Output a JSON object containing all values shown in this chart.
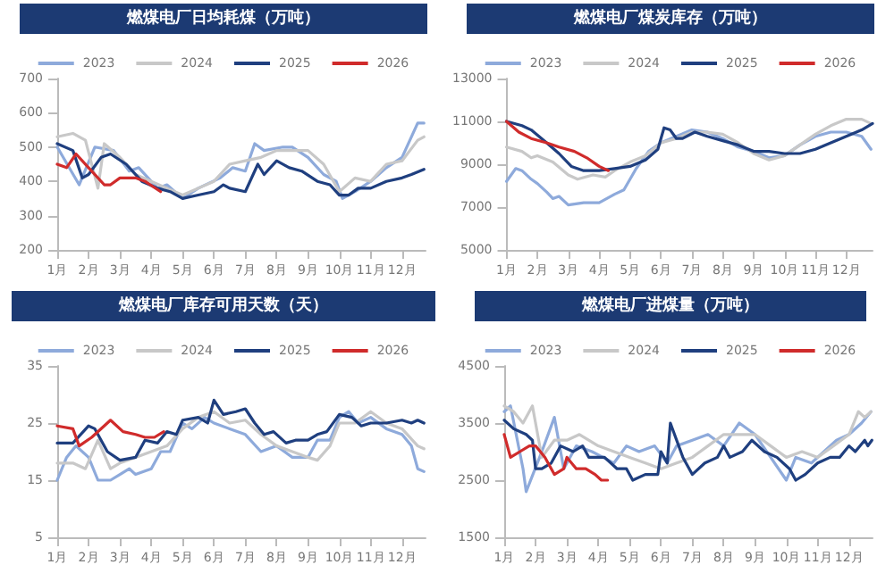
{
  "chart_data": [
    {
      "type": "line",
      "title": "燃煤电厂日均耗煤（万吨）",
      "legend": "top",
      "grid": false,
      "marker": "none",
      "line_style": "solid",
      "xlim": [
        1,
        12.75
      ],
      "xticks": [
        {
          "value": 1,
          "label": "1月"
        },
        {
          "value": 2,
          "label": "2月"
        },
        {
          "value": 3,
          "label": "3月"
        },
        {
          "value": 4,
          "label": "4月"
        },
        {
          "value": 5,
          "label": "5月"
        },
        {
          "value": 6,
          "label": "6月"
        },
        {
          "value": 7,
          "label": "7月"
        },
        {
          "value": 8,
          "label": "8月"
        },
        {
          "value": 9,
          "label": "9月"
        },
        {
          "value": 10,
          "label": "10月"
        },
        {
          "value": 11,
          "label": "11月"
        },
        {
          "value": 12,
          "label": "12月"
        }
      ],
      "ylim": [
        200,
        700
      ],
      "yticks": [
        200,
        300,
        400,
        500,
        600,
        700
      ],
      "series": [
        {
          "name": "2023",
          "color": "#8eaadb",
          "x": [
            1,
            1.7,
            2.2,
            2.8,
            3.3,
            3.6,
            4.2,
            4.5,
            5,
            5.5,
            6.2,
            6.6,
            7,
            7.3,
            7.6,
            8.2,
            8.5,
            9,
            9.5,
            9.9,
            10.1,
            10.5,
            11,
            11.5,
            12,
            12.5,
            12.7
          ],
          "values": [
            500,
            390,
            500,
            490,
            430,
            440,
            380,
            390,
            350,
            380,
            410,
            440,
            430,
            510,
            490,
            500,
            500,
            470,
            420,
            400,
            350,
            370,
            400,
            440,
            470,
            570,
            570
          ]
        },
        {
          "name": "2024",
          "color": "#c8c8c8",
          "x": [
            1,
            1.5,
            1.9,
            2.3,
            2.5,
            3,
            3.5,
            4,
            4.5,
            5,
            5.5,
            6,
            6.5,
            7,
            7.5,
            8,
            8.5,
            9,
            9.5,
            10,
            10.5,
            11,
            11.5,
            12,
            12.5,
            12.7
          ],
          "values": [
            530,
            540,
            520,
            380,
            510,
            470,
            420,
            400,
            380,
            360,
            380,
            400,
            450,
            460,
            470,
            490,
            490,
            490,
            450,
            370,
            410,
            400,
            450,
            460,
            520,
            530
          ]
        },
        {
          "name": "2025",
          "color": "#1f3f7f",
          "x": [
            1,
            1.5,
            1.8,
            2,
            2.4,
            2.7,
            3.2,
            3.7,
            4.2,
            4.6,
            5,
            5.5,
            6,
            6.3,
            6.5,
            7,
            7.4,
            7.6,
            8,
            8.4,
            8.8,
            9.3,
            9.7,
            10,
            10.3,
            10.6,
            11,
            11.5,
            12,
            12.3,
            12.7
          ],
          "values": [
            510,
            490,
            410,
            420,
            470,
            480,
            450,
            400,
            380,
            370,
            350,
            360,
            370,
            390,
            380,
            370,
            450,
            420,
            460,
            440,
            430,
            400,
            390,
            360,
            360,
            380,
            380,
            400,
            410,
            420,
            435
          ]
        },
        {
          "name": "2026",
          "color": "#d02b2b",
          "x": [
            1,
            1.3,
            1.6,
            2,
            2.5,
            2.7,
            3,
            3.5,
            3.8,
            4.3
          ],
          "values": [
            450,
            440,
            480,
            440,
            390,
            390,
            410,
            410,
            400,
            370
          ]
        }
      ]
    },
    {
      "type": "line",
      "title": "燃煤电厂煤炭库存（万吨）",
      "legend": "top",
      "grid": false,
      "marker": "none",
      "line_style": "solid",
      "xlim": [
        1,
        12.85
      ],
      "xticks": [
        {
          "value": 1,
          "label": "1月"
        },
        {
          "value": 2,
          "label": "2月"
        },
        {
          "value": 3,
          "label": "3月"
        },
        {
          "value": 4,
          "label": "4月"
        },
        {
          "value": 5,
          "label": "5月"
        },
        {
          "value": 6,
          "label": "6月"
        },
        {
          "value": 7,
          "label": "7月"
        },
        {
          "value": 8,
          "label": "8月"
        },
        {
          "value": 9,
          "label": "9月"
        },
        {
          "value": 10,
          "label": "10月"
        },
        {
          "value": 11,
          "label": "11月"
        },
        {
          "value": 12,
          "label": "12月"
        }
      ],
      "ylim": [
        5000,
        13000
      ],
      "yticks": [
        5000,
        7000,
        9000,
        11000,
        13000
      ],
      "series": [
        {
          "name": "2023",
          "color": "#8eaadb",
          "x": [
            1,
            1.3,
            1.5,
            1.8,
            2,
            2.3,
            2.5,
            2.7,
            3,
            3.5,
            4,
            4.5,
            4.8,
            5.2,
            5.6,
            6,
            6.5,
            7,
            7.5,
            8,
            8.5,
            9,
            9.5,
            10,
            10.5,
            11,
            11.5,
            12,
            12.5,
            12.8
          ],
          "values": [
            8200,
            8800,
            8700,
            8300,
            8100,
            7700,
            7400,
            7500,
            7100,
            7200,
            7200,
            7600,
            7800,
            8800,
            9600,
            10000,
            10300,
            10600,
            10500,
            10200,
            9800,
            9600,
            9300,
            9400,
            9900,
            10300,
            10500,
            10500,
            10300,
            9700
          ]
        },
        {
          "name": "2024",
          "color": "#c8c8c8",
          "x": [
            1,
            1.5,
            1.8,
            2,
            2.5,
            3,
            3.3,
            3.8,
            4.2,
            4.5,
            5,
            5.5,
            6,
            6.5,
            7,
            7.5,
            8,
            8.5,
            9,
            9.5,
            10,
            10.5,
            11,
            11.5,
            12,
            12.5,
            12.8
          ],
          "values": [
            9800,
            9600,
            9300,
            9400,
            9100,
            8500,
            8300,
            8500,
            8400,
            8700,
            9100,
            9400,
            10000,
            10200,
            10500,
            10500,
            10400,
            10000,
            9500,
            9200,
            9400,
            9900,
            10400,
            10800,
            11100,
            11100,
            10900
          ]
        },
        {
          "name": "2025",
          "color": "#1f3f7f",
          "x": [
            1,
            1.5,
            1.8,
            2.3,
            2.7,
            3.1,
            3.5,
            4,
            4.5,
            5,
            5.5,
            5.9,
            6.1,
            6.3,
            6.5,
            6.7,
            7.1,
            7.5,
            8,
            8.5,
            9,
            9.5,
            10,
            10.5,
            11,
            11.5,
            12,
            12.5,
            12.85
          ],
          "values": [
            11000,
            10800,
            10600,
            10000,
            9500,
            8900,
            8700,
            8700,
            8800,
            8900,
            9200,
            9700,
            10700,
            10600,
            10200,
            10200,
            10500,
            10300,
            10100,
            9900,
            9600,
            9600,
            9500,
            9500,
            9700,
            10000,
            10300,
            10600,
            10900
          ]
        },
        {
          "name": "2026",
          "color": "#d02b2b",
          "x": [
            1,
            1.4,
            1.8,
            2.3,
            2.7,
            3.2,
            3.6,
            4,
            4.3
          ],
          "values": [
            11000,
            10500,
            10200,
            10000,
            9800,
            9600,
            9300,
            8900,
            8700
          ]
        }
      ]
    },
    {
      "type": "line",
      "title": "燃煤电厂库存可用天数（天）",
      "legend": "top",
      "grid": false,
      "marker": "none",
      "line_style": "solid",
      "xlim": [
        1,
        12.75
      ],
      "xticks": [
        {
          "value": 1,
          "label": "1月"
        },
        {
          "value": 2,
          "label": "2月"
        },
        {
          "value": 3,
          "label": "3月"
        },
        {
          "value": 4,
          "label": "4月"
        },
        {
          "value": 5,
          "label": "5月"
        },
        {
          "value": 6,
          "label": "6月"
        },
        {
          "value": 7,
          "label": "7月"
        },
        {
          "value": 8,
          "label": "8月"
        },
        {
          "value": 9,
          "label": "9月"
        },
        {
          "value": 10,
          "label": "10月"
        },
        {
          "value": 11,
          "label": "11月"
        },
        {
          "value": 12,
          "label": "12月"
        }
      ],
      "ylim": [
        5,
        35
      ],
      "yticks": [
        5,
        15,
        25,
        35
      ],
      "series": [
        {
          "name": "2023",
          "color": "#8eaadb",
          "x": [
            1,
            1.3,
            1.6,
            2,
            2.3,
            2.7,
            3,
            3.3,
            3.5,
            4,
            4.3,
            4.6,
            5,
            5.3,
            5.7,
            6,
            6.5,
            7,
            7.5,
            8,
            8.5,
            9,
            9.3,
            9.7,
            10,
            10.3,
            10.6,
            11,
            11.5,
            12,
            12.3,
            12.5,
            12.7
          ],
          "values": [
            15,
            19,
            21,
            19,
            15,
            15,
            16,
            17,
            16,
            17,
            20,
            20,
            25,
            24,
            26,
            25,
            24,
            23,
            20,
            21,
            19,
            19,
            22,
            22,
            26,
            27,
            25,
            26,
            24,
            23,
            21,
            17,
            16.5
          ]
        },
        {
          "name": "2024",
          "color": "#c8c8c8",
          "x": [
            1,
            1.5,
            1.9,
            2.3,
            2.7,
            3,
            3.5,
            4,
            4.5,
            5,
            5.5,
            6,
            6.5,
            7,
            7.5,
            8,
            8.5,
            9,
            9.3,
            9.7,
            10,
            10.5,
            11,
            11.5,
            12,
            12.5,
            12.7
          ],
          "values": [
            18,
            18,
            17,
            22,
            17,
            18,
            19,
            20,
            21,
            24,
            26,
            27,
            25,
            25.5,
            23,
            21,
            20,
            19,
            18.5,
            21,
            25,
            25,
            27,
            25,
            24,
            21,
            20.5
          ]
        },
        {
          "name": "2025",
          "color": "#1f3f7f",
          "x": [
            1,
            1.5,
            2,
            2.2,
            2.6,
            3,
            3.5,
            3.8,
            4.2,
            4.5,
            4.8,
            5,
            5.5,
            5.8,
            6,
            6.3,
            6.7,
            7,
            7.3,
            7.6,
            7.9,
            8.3,
            8.6,
            9,
            9.3,
            9.6,
            10,
            10.4,
            10.7,
            11,
            11.5,
            12,
            12.3,
            12.5,
            12.7
          ],
          "values": [
            21.5,
            21.5,
            24.5,
            24,
            20,
            18.5,
            19,
            22,
            21.5,
            23.5,
            23,
            25.5,
            26,
            25,
            29,
            26.5,
            27,
            27.5,
            25,
            23,
            23.5,
            21.5,
            22,
            22,
            23,
            23.5,
            26.5,
            26,
            24.5,
            25,
            25,
            25.5,
            25,
            25.5,
            25
          ]
        },
        {
          "name": "2026",
          "color": "#d02b2b",
          "x": [
            1,
            1.5,
            1.7,
            2.1,
            2.7,
            3.1,
            3.5,
            3.8,
            4.1,
            4.4
          ],
          "values": [
            24.5,
            24,
            21,
            22.5,
            25.5,
            23.5,
            23,
            22.5,
            22.5,
            23.5
          ]
        }
      ]
    },
    {
      "type": "line",
      "title": "燃煤电厂进煤量（万吨）",
      "legend": "top",
      "grid": false,
      "marker": "none",
      "line_style": "solid",
      "xlim": [
        1,
        12.75
      ],
      "xticks": [
        {
          "value": 1,
          "label": "1月"
        },
        {
          "value": 2,
          "label": "2月"
        },
        {
          "value": 3,
          "label": "3月"
        },
        {
          "value": 4,
          "label": "4月"
        },
        {
          "value": 5,
          "label": "5月"
        },
        {
          "value": 6,
          "label": "6月"
        },
        {
          "value": 7,
          "label": "7月"
        },
        {
          "value": 8,
          "label": "8月"
        },
        {
          "value": 9,
          "label": "9月"
        },
        {
          "value": 10,
          "label": "10月"
        },
        {
          "value": 11,
          "label": "11月"
        },
        {
          "value": 12,
          "label": "12月"
        }
      ],
      "ylim": [
        1500,
        4500
      ],
      "yticks": [
        1500,
        2500,
        3500,
        4500
      ],
      "series": [
        {
          "name": "2023",
          "color": "#8eaadb",
          "x": [
            1,
            1.2,
            1.6,
            1.7,
            2.2,
            2.6,
            2.9,
            3.3,
            3.8,
            4.5,
            4.9,
            5.3,
            5.8,
            6.2,
            6.5,
            7,
            7.5,
            8,
            8.5,
            9,
            9.5,
            10,
            10.3,
            10.8,
            11.2,
            11.6,
            12,
            12.4,
            12.7
          ],
          "values": [
            3700,
            3800,
            2700,
            2300,
            3000,
            3600,
            2700,
            3100,
            3000,
            2800,
            3100,
            3000,
            3100,
            2800,
            3100,
            3200,
            3300,
            3100,
            3500,
            3300,
            2900,
            2500,
            2900,
            2800,
            3000,
            3200,
            3300,
            3500,
            3700
          ]
        },
        {
          "name": "2024",
          "color": "#c8c8c8",
          "x": [
            1,
            1.3,
            1.6,
            1.9,
            2.2,
            2.6,
            3,
            3.4,
            4,
            4.5,
            5,
            5.5,
            6,
            6.5,
            7,
            7.5,
            8,
            8.5,
            9,
            9.5,
            10,
            10.5,
            11,
            11.5,
            12,
            12.3,
            12.5,
            12.7
          ],
          "values": [
            3800,
            3700,
            3500,
            3800,
            2900,
            3200,
            3200,
            3300,
            3100,
            3000,
            2900,
            2800,
            2700,
            2800,
            2900,
            3100,
            3300,
            3300,
            3300,
            3100,
            2900,
            3000,
            2900,
            3100,
            3300,
            3700,
            3600,
            3700
          ]
        },
        {
          "name": "2025",
          "color": "#1f3f7f",
          "x": [
            1,
            1.3,
            1.7,
            1.9,
            2,
            2.2,
            2.5,
            2.8,
            3.2,
            3.5,
            3.7,
            4.2,
            4.6,
            4.9,
            5.1,
            5.5,
            5.9,
            6,
            6.2,
            6.3,
            6.7,
            7,
            7.4,
            7.8,
            8,
            8.2,
            8.6,
            8.9,
            9.3,
            9.7,
            10.1,
            10.3,
            10.6,
            11,
            11.4,
            11.7,
            12,
            12.2,
            12.5,
            12.6,
            12.73
          ],
          "values": [
            3550,
            3400,
            3300,
            3200,
            2700,
            2700,
            2800,
            3100,
            3000,
            3100,
            2900,
            2900,
            2700,
            2700,
            2500,
            2600,
            2600,
            3000,
            2800,
            3500,
            2900,
            2600,
            2800,
            2900,
            3100,
            2900,
            3000,
            3200,
            3000,
            2900,
            2700,
            2500,
            2600,
            2800,
            2900,
            2900,
            3100,
            3000,
            3200,
            3100,
            3200
          ]
        },
        {
          "name": "2026",
          "color": "#d02b2b",
          "x": [
            1,
            1.2,
            1.5,
            1.8,
            2,
            2.3,
            2.6,
            2.9,
            3,
            3.3,
            3.6,
            3.9,
            4.1,
            4.3
          ],
          "values": [
            3300,
            2900,
            3000,
            3100,
            3100,
            2900,
            2600,
            2700,
            2900,
            2700,
            2700,
            2600,
            2500,
            2500
          ]
        }
      ]
    }
  ]
}
